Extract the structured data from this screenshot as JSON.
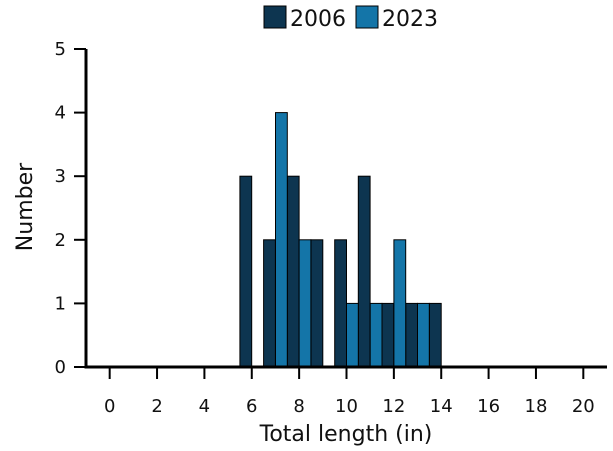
{
  "chart_data": {
    "type": "bar",
    "title": "",
    "xlabel": "Total length (in)",
    "ylabel": "Number",
    "xlim": [
      -1,
      21
    ],
    "ylim": [
      0,
      5
    ],
    "bin_width": 0.5,
    "x_ticks": [
      0,
      2,
      4,
      6,
      8,
      10,
      12,
      14,
      16,
      18,
      20
    ],
    "y_ticks": [
      0,
      1,
      2,
      3,
      4,
      5
    ],
    "legend_position": "top-center",
    "grid": false,
    "series": [
      {
        "name": "2006",
        "color": "#0d3550",
        "points": [
          {
            "x": 5.75,
            "y": 3
          },
          {
            "x": 6.75,
            "y": 2
          },
          {
            "x": 7.75,
            "y": 3
          },
          {
            "x": 8.75,
            "y": 2
          },
          {
            "x": 9.75,
            "y": 2
          },
          {
            "x": 10.75,
            "y": 3
          },
          {
            "x": 11.75,
            "y": 1
          },
          {
            "x": 12.75,
            "y": 1
          },
          {
            "x": 13.75,
            "y": 1
          }
        ]
      },
      {
        "name": "2023",
        "color": "#1475a8",
        "points": [
          {
            "x": 7.25,
            "y": 4
          },
          {
            "x": 8.25,
            "y": 2
          },
          {
            "x": 10.25,
            "y": 1
          },
          {
            "x": 11.25,
            "y": 1
          },
          {
            "x": 12.25,
            "y": 2
          },
          {
            "x": 13.25,
            "y": 1
          }
        ]
      }
    ]
  }
}
